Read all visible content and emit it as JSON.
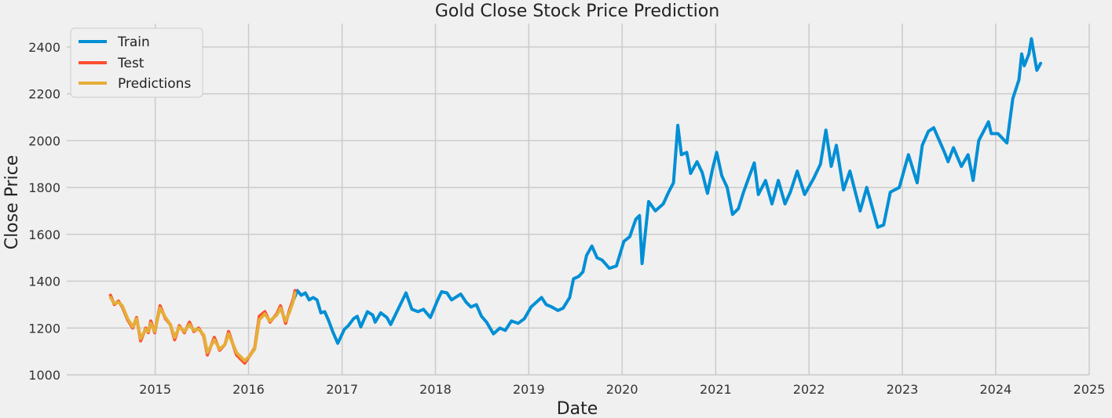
{
  "chart_data": {
    "type": "line",
    "title": "Gold Close Stock Price Prediction",
    "xlabel": "Date",
    "ylabel": "Close Price",
    "xlim": [
      "2014-01-20",
      "2025-01-01"
    ],
    "ylim": [
      1000,
      2500
    ],
    "x_ticks": [
      "2015",
      "2016",
      "2017",
      "2018",
      "2019",
      "2020",
      "2021",
      "2022",
      "2023",
      "2024",
      "2025"
    ],
    "y_ticks": [
      1000,
      1200,
      1400,
      1600,
      1800,
      2000,
      2200,
      2400
    ],
    "grid": true,
    "legend_position": "top-left",
    "series": [
      {
        "name": "Train",
        "color": "#008fd5",
        "points": [
          [
            "2016-06-25",
            1320
          ],
          [
            "2016-07-10",
            1360
          ],
          [
            "2016-07-25",
            1340
          ],
          [
            "2016-08-10",
            1350
          ],
          [
            "2016-08-25",
            1320
          ],
          [
            "2016-09-10",
            1330
          ],
          [
            "2016-09-25",
            1320
          ],
          [
            "2016-10-10",
            1265
          ],
          [
            "2016-10-25",
            1270
          ],
          [
            "2016-11-10",
            1230
          ],
          [
            "2016-11-25",
            1185
          ],
          [
            "2016-12-15",
            1135
          ],
          [
            "2017-01-10",
            1195
          ],
          [
            "2017-01-25",
            1210
          ],
          [
            "2017-02-15",
            1240
          ],
          [
            "2017-03-01",
            1250
          ],
          [
            "2017-03-15",
            1205
          ],
          [
            "2017-04-10",
            1270
          ],
          [
            "2017-05-01",
            1255
          ],
          [
            "2017-05-10",
            1225
          ],
          [
            "2017-06-01",
            1265
          ],
          [
            "2017-06-25",
            1245
          ],
          [
            "2017-07-10",
            1215
          ],
          [
            "2017-08-01",
            1265
          ],
          [
            "2017-09-08",
            1350
          ],
          [
            "2017-10-01",
            1280
          ],
          [
            "2017-10-25",
            1270
          ],
          [
            "2017-11-15",
            1280
          ],
          [
            "2017-12-12",
            1245
          ],
          [
            "2018-01-10",
            1320
          ],
          [
            "2018-01-25",
            1355
          ],
          [
            "2018-02-15",
            1350
          ],
          [
            "2018-03-05",
            1320
          ],
          [
            "2018-04-10",
            1345
          ],
          [
            "2018-05-01",
            1310
          ],
          [
            "2018-05-20",
            1290
          ],
          [
            "2018-06-10",
            1300
          ],
          [
            "2018-06-30",
            1250
          ],
          [
            "2018-07-20",
            1225
          ],
          [
            "2018-08-16",
            1175
          ],
          [
            "2018-09-10",
            1200
          ],
          [
            "2018-10-01",
            1190
          ],
          [
            "2018-10-25",
            1230
          ],
          [
            "2018-11-20",
            1220
          ],
          [
            "2018-12-15",
            1240
          ],
          [
            "2019-01-10",
            1290
          ],
          [
            "2019-02-20",
            1330
          ],
          [
            "2019-03-10",
            1300
          ],
          [
            "2019-04-01",
            1290
          ],
          [
            "2019-04-25",
            1275
          ],
          [
            "2019-05-15",
            1285
          ],
          [
            "2019-06-10",
            1330
          ],
          [
            "2019-06-25",
            1410
          ],
          [
            "2019-07-15",
            1420
          ],
          [
            "2019-08-01",
            1440
          ],
          [
            "2019-08-15",
            1510
          ],
          [
            "2019-09-05",
            1550
          ],
          [
            "2019-09-25",
            1500
          ],
          [
            "2019-10-15",
            1490
          ],
          [
            "2019-11-12",
            1455
          ],
          [
            "2019-12-10",
            1465
          ],
          [
            "2020-01-08",
            1570
          ],
          [
            "2020-01-31",
            1590
          ],
          [
            "2020-02-24",
            1665
          ],
          [
            "2020-03-09",
            1680
          ],
          [
            "2020-03-19",
            1475
          ],
          [
            "2020-04-14",
            1740
          ],
          [
            "2020-05-10",
            1700
          ],
          [
            "2020-06-10",
            1730
          ],
          [
            "2020-07-01",
            1780
          ],
          [
            "2020-07-20",
            1820
          ],
          [
            "2020-08-06",
            2065
          ],
          [
            "2020-08-20",
            1940
          ],
          [
            "2020-09-10",
            1950
          ],
          [
            "2020-09-25",
            1860
          ],
          [
            "2020-10-20",
            1910
          ],
          [
            "2020-11-09",
            1865
          ],
          [
            "2020-11-30",
            1775
          ],
          [
            "2020-12-20",
            1880
          ],
          [
            "2021-01-05",
            1950
          ],
          [
            "2021-01-25",
            1850
          ],
          [
            "2021-02-15",
            1800
          ],
          [
            "2021-03-08",
            1685
          ],
          [
            "2021-03-31",
            1710
          ],
          [
            "2021-04-20",
            1780
          ],
          [
            "2021-05-10",
            1840
          ],
          [
            "2021-06-01",
            1905
          ],
          [
            "2021-06-17",
            1770
          ],
          [
            "2021-07-15",
            1830
          ],
          [
            "2021-08-09",
            1730
          ],
          [
            "2021-09-03",
            1830
          ],
          [
            "2021-09-29",
            1730
          ],
          [
            "2021-10-20",
            1780
          ],
          [
            "2021-11-16",
            1870
          ],
          [
            "2021-12-15",
            1770
          ],
          [
            "2022-01-20",
            1840
          ],
          [
            "2022-02-15",
            1900
          ],
          [
            "2022-03-08",
            2045
          ],
          [
            "2022-03-29",
            1890
          ],
          [
            "2022-04-18",
            1980
          ],
          [
            "2022-05-16",
            1790
          ],
          [
            "2022-06-10",
            1870
          ],
          [
            "2022-07-20",
            1700
          ],
          [
            "2022-08-15",
            1800
          ],
          [
            "2022-09-27",
            1630
          ],
          [
            "2022-10-20",
            1640
          ],
          [
            "2022-11-15",
            1780
          ],
          [
            "2022-12-20",
            1800
          ],
          [
            "2023-01-25",
            1940
          ],
          [
            "2023-02-28",
            1820
          ],
          [
            "2023-03-20",
            1980
          ],
          [
            "2023-04-13",
            2040
          ],
          [
            "2023-05-04",
            2055
          ],
          [
            "2023-06-15",
            1950
          ],
          [
            "2023-06-29",
            1910
          ],
          [
            "2023-07-20",
            1970
          ],
          [
            "2023-08-20",
            1890
          ],
          [
            "2023-09-15",
            1940
          ],
          [
            "2023-10-05",
            1830
          ],
          [
            "2023-10-27",
            2000
          ],
          [
            "2023-12-04",
            2080
          ],
          [
            "2023-12-15",
            2030
          ],
          [
            "2024-01-10",
            2030
          ],
          [
            "2024-02-14",
            1990
          ],
          [
            "2024-03-08",
            2180
          ],
          [
            "2024-04-01",
            2260
          ],
          [
            "2024-04-12",
            2370
          ],
          [
            "2024-04-22",
            2320
          ],
          [
            "2024-05-10",
            2370
          ],
          [
            "2024-05-20",
            2435
          ],
          [
            "2024-06-10",
            2300
          ],
          [
            "2024-06-25",
            2330
          ]
        ]
      },
      {
        "name": "Test",
        "color": "#fc4f30",
        "points": [
          [
            "2014-07-10",
            1340
          ],
          [
            "2014-07-25",
            1300
          ],
          [
            "2014-08-10",
            1315
          ],
          [
            "2014-08-25",
            1290
          ],
          [
            "2014-09-15",
            1235
          ],
          [
            "2014-10-05",
            1200
          ],
          [
            "2014-10-20",
            1245
          ],
          [
            "2014-11-05",
            1145
          ],
          [
            "2014-11-25",
            1200
          ],
          [
            "2014-12-05",
            1180
          ],
          [
            "2014-12-15",
            1230
          ],
          [
            "2014-12-30",
            1180
          ],
          [
            "2015-01-20",
            1295
          ],
          [
            "2015-02-10",
            1240
          ],
          [
            "2015-03-01",
            1215
          ],
          [
            "2015-03-18",
            1150
          ],
          [
            "2015-04-05",
            1210
          ],
          [
            "2015-04-25",
            1180
          ],
          [
            "2015-05-15",
            1225
          ],
          [
            "2015-06-01",
            1185
          ],
          [
            "2015-06-20",
            1200
          ],
          [
            "2015-07-10",
            1165
          ],
          [
            "2015-07-24",
            1085
          ],
          [
            "2015-08-20",
            1160
          ],
          [
            "2015-09-10",
            1105
          ],
          [
            "2015-10-01",
            1130
          ],
          [
            "2015-10-15",
            1185
          ],
          [
            "2015-11-15",
            1085
          ],
          [
            "2015-12-17",
            1050
          ],
          [
            "2016-01-05",
            1080
          ],
          [
            "2016-01-25",
            1115
          ],
          [
            "2016-02-12",
            1250
          ],
          [
            "2016-03-05",
            1270
          ],
          [
            "2016-03-25",
            1225
          ],
          [
            "2016-04-20",
            1260
          ],
          [
            "2016-05-05",
            1295
          ],
          [
            "2016-05-25",
            1220
          ],
          [
            "2016-06-10",
            1280
          ],
          [
            "2016-06-24",
            1325
          ],
          [
            "2016-07-01",
            1360
          ]
        ]
      },
      {
        "name": "Predictions",
        "color": "#e5ae38",
        "points": [
          [
            "2014-07-10",
            1330
          ],
          [
            "2014-07-25",
            1305
          ],
          [
            "2014-08-10",
            1310
          ],
          [
            "2014-08-25",
            1295
          ],
          [
            "2014-09-15",
            1240
          ],
          [
            "2014-10-05",
            1205
          ],
          [
            "2014-10-20",
            1240
          ],
          [
            "2014-11-05",
            1155
          ],
          [
            "2014-11-25",
            1195
          ],
          [
            "2014-12-05",
            1185
          ],
          [
            "2014-12-15",
            1220
          ],
          [
            "2014-12-30",
            1185
          ],
          [
            "2015-01-20",
            1285
          ],
          [
            "2015-02-10",
            1245
          ],
          [
            "2015-03-01",
            1215
          ],
          [
            "2015-03-18",
            1160
          ],
          [
            "2015-04-05",
            1205
          ],
          [
            "2015-04-25",
            1185
          ],
          [
            "2015-05-15",
            1215
          ],
          [
            "2015-06-01",
            1190
          ],
          [
            "2015-06-20",
            1195
          ],
          [
            "2015-07-10",
            1170
          ],
          [
            "2015-07-24",
            1095
          ],
          [
            "2015-08-20",
            1150
          ],
          [
            "2015-09-10",
            1110
          ],
          [
            "2015-10-01",
            1130
          ],
          [
            "2015-10-15",
            1175
          ],
          [
            "2015-11-15",
            1095
          ],
          [
            "2015-12-17",
            1060
          ],
          [
            "2016-01-05",
            1080
          ],
          [
            "2016-01-25",
            1110
          ],
          [
            "2016-02-12",
            1235
          ],
          [
            "2016-03-05",
            1260
          ],
          [
            "2016-03-25",
            1230
          ],
          [
            "2016-04-20",
            1255
          ],
          [
            "2016-05-05",
            1285
          ],
          [
            "2016-05-25",
            1230
          ],
          [
            "2016-06-10",
            1270
          ],
          [
            "2016-06-24",
            1315
          ],
          [
            "2016-07-01",
            1350
          ]
        ]
      }
    ]
  }
}
